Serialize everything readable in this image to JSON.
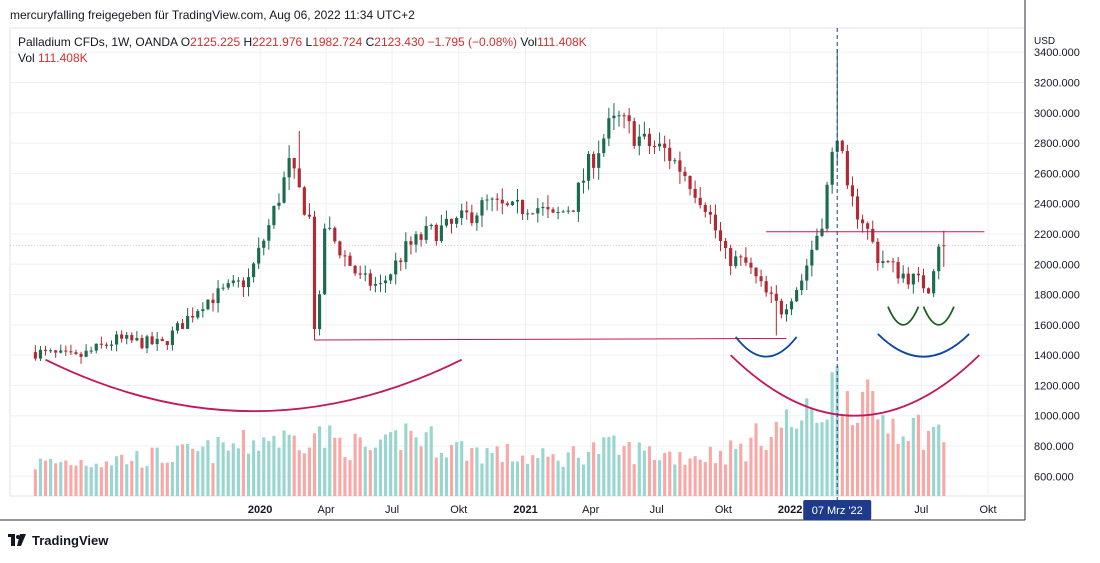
{
  "header": {
    "attribution": "mercuryfalling freigegeben für TradingView.com, Aug 06, 2022 11:34 UTC+2"
  },
  "legend": {
    "symbol": "Palladium CFDs, 1W, OANDA",
    "o_label": "O",
    "o_value": "2125.225",
    "h_label": "H",
    "h_value": "2221.976",
    "l_label": "L",
    "l_value": "1982.724",
    "c_label": "C",
    "c_value": "2123.430",
    "change": "−1.795 (−0.08%)",
    "vol_label": "Vol",
    "vol_value": "111.408K",
    "vol2_label": "Vol",
    "vol2_value": "111.408K"
  },
  "footer": {
    "brand": "TradingView"
  },
  "colors": {
    "up": "#26a69a",
    "down": "#ef5350",
    "up_strong": "#1b6b4f",
    "down_strong": "#b22833",
    "vol_up": "#99d6cf",
    "vol_down": "#f7a9a7",
    "arc": "#c2185b",
    "arc_blue": "#0d47a1",
    "arc_green": "#1b5e20",
    "hline": "#c2185b",
    "crosshair": "#2a3b8f"
  },
  "chart_data": {
    "type": "candlestick",
    "title": "Palladium CFDs, 1W, OANDA",
    "currency_label": "USD",
    "y_ticks": [
      600,
      800,
      1000,
      1200,
      1400,
      1600,
      1800,
      2000,
      2200,
      2400,
      2600,
      2800,
      3000,
      3200,
      3400
    ],
    "y_tick_labels": [
      "600.000",
      "800.000",
      "1000.000",
      "1200.000",
      "1400.000",
      "1600.000",
      "1800.000",
      "2000.000",
      "2200.000",
      "2400.000",
      "2600.000",
      "2800.000",
      "3000.000",
      "3200.000",
      "3400.000"
    ],
    "ylim": [
      470,
      3560
    ],
    "x_tick_labels": [
      {
        "date": "2020-01-01",
        "label": "2020",
        "bold": true
      },
      {
        "date": "2020-04-01",
        "label": "Apr",
        "bold": false
      },
      {
        "date": "2020-07-01",
        "label": "Jul",
        "bold": false
      },
      {
        "date": "2020-10-01",
        "label": "Okt",
        "bold": false
      },
      {
        "date": "2021-01-01",
        "label": "2021",
        "bold": true
      },
      {
        "date": "2021-04-01",
        "label": "Apr",
        "bold": false
      },
      {
        "date": "2021-07-01",
        "label": "Jul",
        "bold": false
      },
      {
        "date": "2021-10-01",
        "label": "Okt",
        "bold": false
      },
      {
        "date": "2022-01-01",
        "label": "2022",
        "bold": true
      },
      {
        "date": "2022-07-01",
        "label": "Jul",
        "bold": false
      },
      {
        "date": "2022-10-01",
        "label": "Okt",
        "bold": false
      }
    ],
    "crosshair": {
      "date": "2022-03-07",
      "label": "07 Mrz '22"
    },
    "anchors": [
      {
        "date": "2019-02-25",
        "close": 1420,
        "vol": 280
      },
      {
        "date": "2019-04-22",
        "close": 1380,
        "vol": 300
      },
      {
        "date": "2019-06-17",
        "close": 1500,
        "vol": 320
      },
      {
        "date": "2019-08-19",
        "close": 1470,
        "vol": 340
      },
      {
        "date": "2019-10-14",
        "close": 1750,
        "vol": 380
      },
      {
        "date": "2019-12-16",
        "close": 1900,
        "vol": 450
      },
      {
        "date": "2020-01-13",
        "close": 2250,
        "vol": 520
      },
      {
        "date": "2020-02-10",
        "close": 2650,
        "vol": 480
      },
      {
        "date": "2020-03-09",
        "close": 2300,
        "vol": 540
      },
      {
        "date": "2020-03-16",
        "close": 1600,
        "vol": 560
      },
      {
        "date": "2020-03-23",
        "close": 1750,
        "vol": 520
      },
      {
        "date": "2020-03-30",
        "close": 2250,
        "vol": 500
      },
      {
        "date": "2020-05-18",
        "close": 1900,
        "vol": 420
      },
      {
        "date": "2020-06-15",
        "close": 1850,
        "vol": 380
      },
      {
        "date": "2020-07-20",
        "close": 2100,
        "vol": 560
      },
      {
        "date": "2020-08-17",
        "close": 2200,
        "vol": 500
      },
      {
        "date": "2020-09-21",
        "close": 2250,
        "vol": 420
      },
      {
        "date": "2020-11-09",
        "close": 2400,
        "vol": 380
      },
      {
        "date": "2020-12-14",
        "close": 2350,
        "vol": 350
      },
      {
        "date": "2021-01-11",
        "close": 2400,
        "vol": 330
      },
      {
        "date": "2021-02-08",
        "close": 2300,
        "vol": 320
      },
      {
        "date": "2021-03-08",
        "close": 2400,
        "vol": 360
      },
      {
        "date": "2021-03-29",
        "close": 2650,
        "vol": 400
      },
      {
        "date": "2021-04-26",
        "close": 2900,
        "vol": 420
      },
      {
        "date": "2021-05-10",
        "close": 2950,
        "vol": 400
      },
      {
        "date": "2021-06-14",
        "close": 2800,
        "vol": 380
      },
      {
        "date": "2021-07-12",
        "close": 2750,
        "vol": 360
      },
      {
        "date": "2021-08-09",
        "close": 2600,
        "vol": 350
      },
      {
        "date": "2021-09-06",
        "close": 2400,
        "vol": 360
      },
      {
        "date": "2021-10-04",
        "close": 2050,
        "vol": 380
      },
      {
        "date": "2021-11-01",
        "close": 2000,
        "vol": 420
      },
      {
        "date": "2021-11-29",
        "close": 1800,
        "vol": 560
      },
      {
        "date": "2021-12-20",
        "close": 1700,
        "vol": 620
      },
      {
        "date": "2022-01-17",
        "close": 1900,
        "vol": 640
      },
      {
        "date": "2022-02-14",
        "close": 2300,
        "vol": 760
      },
      {
        "date": "2022-03-07",
        "close": 2900,
        "vol": 1020
      },
      {
        "date": "2022-03-21",
        "close": 2450,
        "vol": 900
      },
      {
        "date": "2022-04-11",
        "close": 2300,
        "vol": 820
      },
      {
        "date": "2022-05-02",
        "close": 2050,
        "vol": 700
      },
      {
        "date": "2022-05-30",
        "close": 1950,
        "vol": 640
      },
      {
        "date": "2022-06-20",
        "close": 1900,
        "vol": 600
      },
      {
        "date": "2022-07-11",
        "close": 1850,
        "vol": 560
      },
      {
        "date": "2022-07-25",
        "close": 2150,
        "vol": 540
      },
      {
        "date": "2022-08-01",
        "close": 2123,
        "vol": 540
      }
    ],
    "neckline_resistance": {
      "start": "2021-11-29",
      "end": "2022-09-26",
      "value": 2215
    },
    "support_line": {
      "start": "2020-03-16",
      "start_value": 1500,
      "end": "2021-12-27",
      "end_value": 1510
    },
    "arcs": [
      {
        "name": "big-arc-left",
        "start": "2019-03-11",
        "end": "2020-10-05",
        "top": 1370,
        "bottom": 1030,
        "color_key": "arc"
      },
      {
        "name": "big-arc-right",
        "start": "2021-10-11",
        "end": "2022-09-19",
        "top": 1400,
        "bottom": 1000,
        "color_key": "arc"
      },
      {
        "name": "blue-arc-left",
        "start": "2021-10-18",
        "end": "2022-01-10",
        "top": 1520,
        "bottom": 1390,
        "color_key": "arc_blue"
      },
      {
        "name": "blue-arc-right",
        "start": "2022-05-02",
        "end": "2022-09-05",
        "top": 1540,
        "bottom": 1390,
        "color_key": "arc_blue"
      },
      {
        "name": "green-arc-left",
        "start": "2022-05-16",
        "end": "2022-06-27",
        "top": 1720,
        "bottom": 1600,
        "color_key": "arc_green"
      },
      {
        "name": "green-arc-right",
        "start": "2022-07-04",
        "end": "2022-08-15",
        "top": 1720,
        "bottom": 1600,
        "color_key": "arc_green"
      }
    ]
  }
}
